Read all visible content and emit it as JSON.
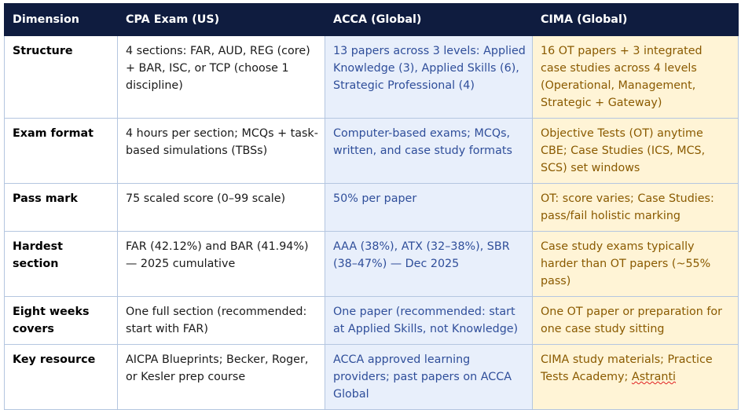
{
  "headers": [
    "Dimension",
    "CPA Exam (US)",
    "ACCA (Global)",
    "CIMA (Global)"
  ],
  "rows": [
    {
      "dimension": "Structure",
      "cpa": "4 sections: FAR, AUD, REG (core) + BAR, ISC, or TCP (choose 1 discipline)",
      "acca": "13 papers across 3 levels: Applied Knowledge (3), Applied Skills (6), Strategic Professional (4)",
      "cima": "16 OT papers + 3 integrated case studies across 4 levels (Operational, Management, Strategic + Gateway)"
    },
    {
      "dimension": "Exam format",
      "cpa": "4 hours per section; MCQs + task-based simulations (TBSs)",
      "acca": "Computer-based exams; MCQs, written, and case study formats",
      "cima": "Objective Tests (OT) anytime CBE; Case Studies (ICS, MCS, SCS) set windows"
    },
    {
      "dimension": "Pass mark",
      "cpa": "75 scaled score (0–99 scale)",
      "acca": "50% per paper",
      "cima": "OT: score varies; Case Studies: pass/fail holistic marking"
    },
    {
      "dimension": "Hardest section",
      "cpa": "FAR (42.12%) and BAR (41.94%) — 2025 cumulative",
      "acca": "AAA (38%), ATX (32–38%), SBR (38–47%) — Dec 2025",
      "cima": "Case study exams typically harder than OT papers (~55% pass)"
    },
    {
      "dimension": "Eight weeks covers",
      "cpa": "One full section (recommended: start with FAR)",
      "acca": "One paper (recommended: start at Applied Skills, not Knowledge)",
      "cima": "One OT paper or preparation for one case study sitting"
    },
    {
      "dimension": "Key resource",
      "cpa": "AICPA Blueprints; Becker, Roger, or Kesler prep course",
      "acca": "ACCA approved learning providers; past papers on ACCA Global",
      "cima_prefix": "CIMA study materials; Practice Tests Academy; ",
      "cima_flagged_word": "Astranti"
    }
  ],
  "colors": {
    "header_bg": "#0f1c3f",
    "header_text": "#ffffff",
    "acca_bg": "#e8effb",
    "acca_text": "#2f4e9a",
    "cima_bg": "#fff4d6",
    "cima_text": "#8a5a00",
    "border": "#b4c6e0",
    "spellcheck_underline": "#e02020"
  }
}
